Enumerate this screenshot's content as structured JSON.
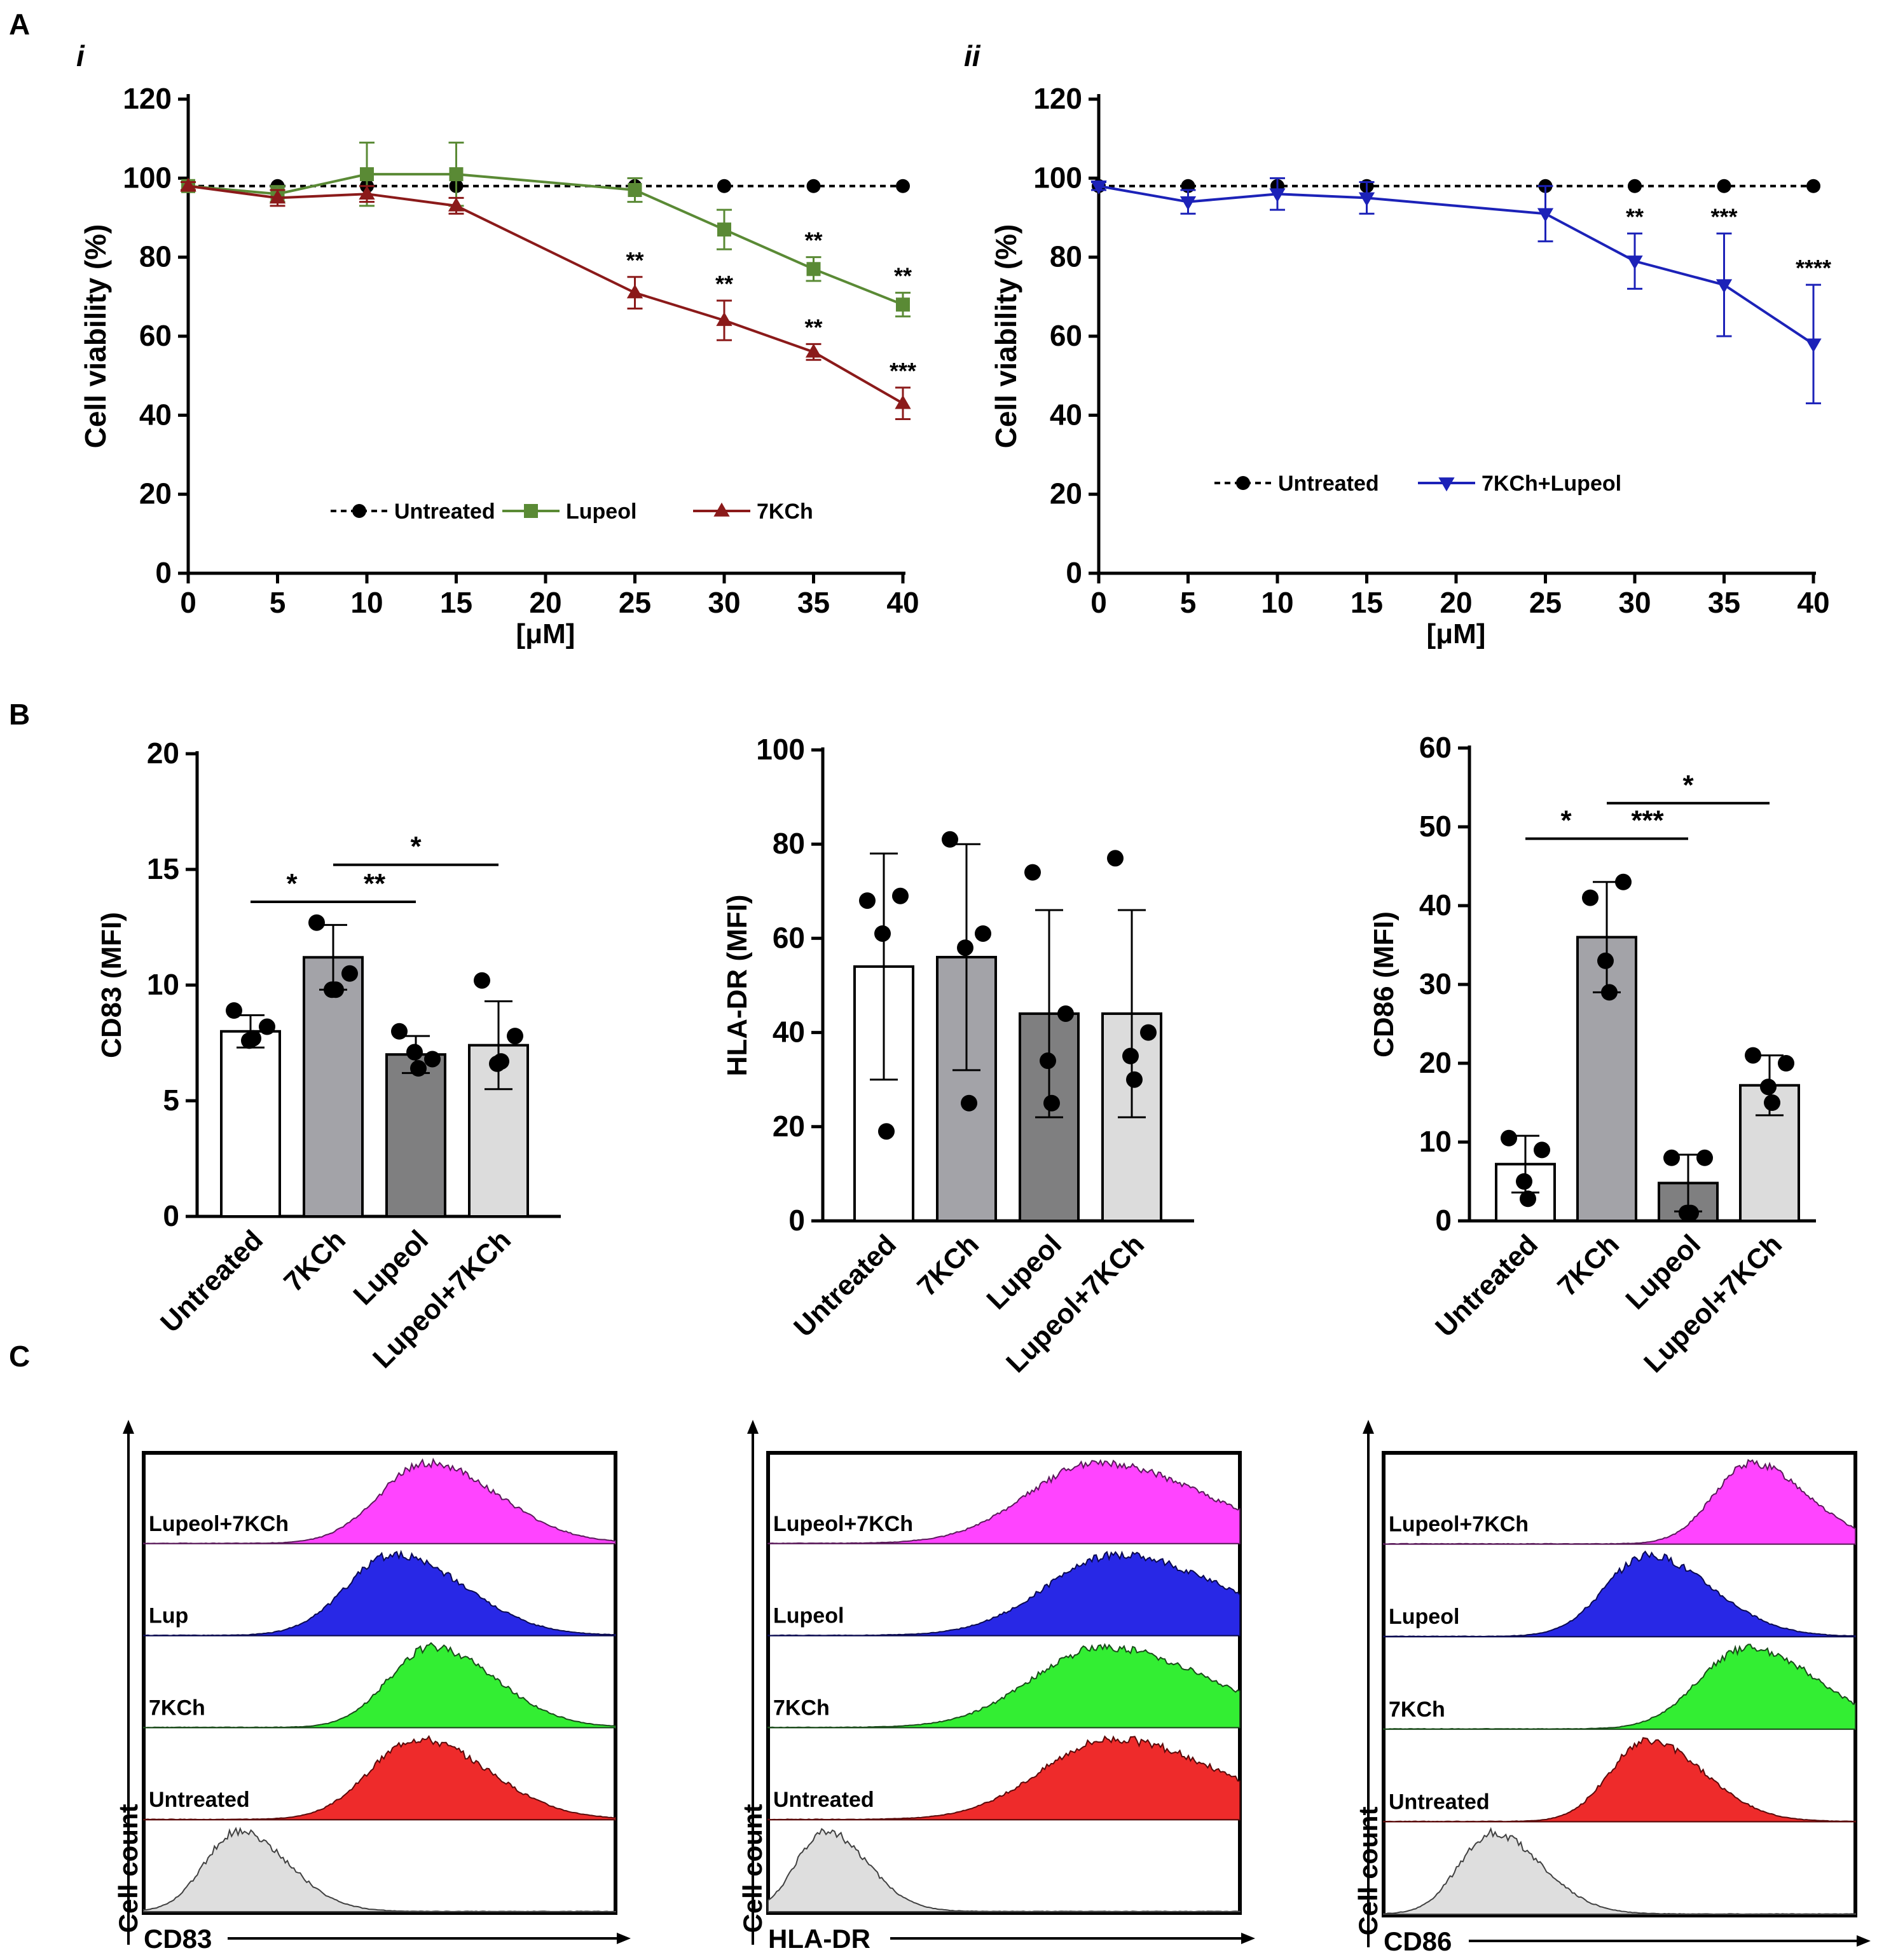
{
  "panel_labels": {
    "A": "A",
    "B": "B",
    "C": "C",
    "A_i": "i",
    "A_ii": "ii"
  },
  "colors": {
    "untreated": "#000000",
    "lupeol_line": "#5a8a35",
    "kch_line": "#8b1a1a",
    "combo_line": "#1c22b8",
    "bar_untreated": "#ffffff",
    "bar_7kch": "#a3a3a8",
    "bar_lupeol": "#7f7f80",
    "bar_combo": "#dcdcdc",
    "hist_combo": "#ff44ff",
    "hist_lupeol": "#2828e6",
    "hist_7kch": "#33ee33",
    "hist_untreated": "#ee2b2b",
    "hist_iso": "#dedede"
  },
  "chart_data": [
    {
      "id": "A_i",
      "type": "line",
      "xlabel": "[μM]",
      "ylabel": "Cell viability (%)",
      "xlim": [
        0,
        40
      ],
      "ylim": [
        0,
        120
      ],
      "xticks": [
        0,
        5,
        10,
        15,
        20,
        25,
        30,
        35,
        40
      ],
      "yticks": [
        0,
        20,
        40,
        60,
        80,
        100,
        120
      ],
      "legend": [
        "Untreated",
        "Lupeol",
        "7KCh"
      ],
      "series": [
        {
          "name": "Untreated",
          "marker": "circle",
          "dashed": true,
          "color": "#000000",
          "x": [
            0,
            5,
            10,
            15,
            25,
            30,
            35,
            40
          ],
          "y": [
            98,
            98,
            98,
            98,
            98,
            98,
            98,
            98
          ],
          "err": [
            0,
            0,
            0,
            0,
            0,
            0,
            0,
            0
          ]
        },
        {
          "name": "Lupeol",
          "marker": "square",
          "dashed": false,
          "color": "#5a8a35",
          "x": [
            0,
            5,
            10,
            15,
            25,
            30,
            35,
            40
          ],
          "y": [
            98,
            96,
            101,
            101,
            97,
            87,
            77,
            68
          ],
          "err": [
            1,
            2,
            8,
            8,
            3,
            5,
            3,
            3
          ]
        },
        {
          "name": "7KCh",
          "marker": "triangle-up",
          "dashed": false,
          "color": "#8b1a1a",
          "x": [
            0,
            5,
            10,
            15,
            25,
            30,
            35,
            40
          ],
          "y": [
            98,
            95,
            96,
            93,
            71,
            64,
            56,
            43
          ],
          "err": [
            1,
            2,
            2,
            2,
            4,
            5,
            2,
            4
          ]
        }
      ],
      "annotations": [
        {
          "x": 25,
          "y": 71,
          "text": "**"
        },
        {
          "x": 30,
          "y": 64,
          "text": "**"
        },
        {
          "x": 35,
          "y": 56,
          "text": "**"
        },
        {
          "x": 40,
          "y": 43,
          "text": "***"
        },
        {
          "x": 35,
          "y": 77,
          "text": "**"
        },
        {
          "x": 40,
          "y": 68,
          "text": "**"
        }
      ]
    },
    {
      "id": "A_ii",
      "type": "line",
      "xlabel": "[μM]",
      "ylabel": "Cell viability (%)",
      "xlim": [
        0,
        40
      ],
      "ylim": [
        0,
        120
      ],
      "xticks": [
        0,
        5,
        10,
        15,
        20,
        25,
        30,
        35,
        40
      ],
      "yticks": [
        0,
        20,
        40,
        60,
        80,
        100,
        120
      ],
      "legend": [
        "Untreated",
        "7KCh+Lupeol"
      ],
      "series": [
        {
          "name": "Untreated",
          "marker": "circle",
          "dashed": true,
          "color": "#000000",
          "x": [
            0,
            5,
            10,
            15,
            25,
            30,
            35,
            40
          ],
          "y": [
            98,
            98,
            98,
            98,
            98,
            98,
            98,
            98
          ],
          "err": [
            0,
            0,
            0,
            0,
            0,
            0,
            0,
            0
          ]
        },
        {
          "name": "7KCh+Lupeol",
          "marker": "triangle-down",
          "dashed": false,
          "color": "#1c22b8",
          "x": [
            0,
            5,
            10,
            15,
            25,
            30,
            35,
            40
          ],
          "y": [
            98,
            94,
            96,
            95,
            91,
            79,
            73,
            58
          ],
          "err": [
            1,
            3,
            4,
            4,
            7,
            7,
            13,
            15
          ]
        }
      ],
      "annotations": [
        {
          "x": 30,
          "y": 79,
          "text": "**"
        },
        {
          "x": 35,
          "y": 73,
          "text": "***"
        },
        {
          "x": 40,
          "y": 58,
          "text": "****"
        }
      ]
    },
    {
      "id": "B_CD83",
      "type": "bar",
      "ylabel": "CD83 (MFI)",
      "ylim": [
        0,
        20
      ],
      "yticks": [
        0,
        5,
        10,
        15,
        20
      ],
      "categories": [
        "Untreated",
        "7KCh",
        "Lupeol",
        "Lupeol+7KCh"
      ],
      "values": [
        8.0,
        11.2,
        7.0,
        7.4
      ],
      "err": [
        0.7,
        1.4,
        0.8,
        1.9
      ],
      "points": [
        [
          8.9,
          8.2,
          7.6,
          7.7
        ],
        [
          12.7,
          10.5,
          9.8,
          9.8
        ],
        [
          8.0,
          6.8,
          7.1,
          6.4
        ],
        [
          10.2,
          7.8,
          6.6,
          6.7
        ]
      ],
      "significance": [
        {
          "from": 0,
          "to": 1,
          "y": 13.6,
          "text": "*"
        },
        {
          "from": 1,
          "to": 2,
          "y": 13.6,
          "text": "**"
        },
        {
          "from": 1,
          "to": 3,
          "y": 15.2,
          "text": "*"
        }
      ]
    },
    {
      "id": "B_HLADR",
      "type": "bar",
      "ylabel": "HLA-DR (MFI)",
      "ylim": [
        0,
        100
      ],
      "yticks": [
        0,
        20,
        40,
        60,
        80,
        100
      ],
      "categories": [
        "Untreated",
        "7KCh",
        "Lupeol",
        "Lupeol+7KCh"
      ],
      "values": [
        54,
        56,
        44,
        44
      ],
      "err": [
        24,
        24,
        22,
        22
      ],
      "points": [
        [
          68,
          69,
          61,
          19
        ],
        [
          81,
          61,
          58,
          25
        ],
        [
          74,
          44,
          34,
          25
        ],
        [
          77,
          40,
          35,
          30
        ]
      ],
      "significance": []
    },
    {
      "id": "B_CD86",
      "type": "bar",
      "ylabel": "CD86 (MFI)",
      "ylim": [
        0,
        60
      ],
      "yticks": [
        0,
        10,
        20,
        30,
        40,
        50,
        60
      ],
      "categories": [
        "Untreated",
        "7KCh",
        "Lupeol",
        "Lupeol+7KCh"
      ],
      "values": [
        7.2,
        36.0,
        4.8,
        17.2
      ],
      "err": [
        3.6,
        7.0,
        3.6,
        3.8
      ],
      "points": [
        [
          10.5,
          9.0,
          5.0,
          2.8
        ],
        [
          41.0,
          43.0,
          33.0,
          29.0
        ],
        [
          8.0,
          8.0,
          1.0,
          1.0
        ],
        [
          21.0,
          20.0,
          17.0,
          15.0
        ]
      ],
      "significance": [
        {
          "from": 0,
          "to": 1,
          "y": 48.5,
          "text": "*"
        },
        {
          "from": 1,
          "to": 2,
          "y": 48.5,
          "text": "***"
        },
        {
          "from": 1,
          "to": 3,
          "y": 53.0,
          "text": "*"
        }
      ]
    },
    {
      "id": "C_CD83",
      "type": "area",
      "xlabel": "CD83",
      "ylabel": "Cell count",
      "rows": [
        {
          "label": "Lupeol+7KCh",
          "peak": 0.6,
          "width": 0.1
        },
        {
          "label": "Lup",
          "peak": 0.53,
          "width": 0.1
        },
        {
          "label": "7KCh",
          "peak": 0.61,
          "width": 0.09
        },
        {
          "label": "Untreated",
          "peak": 0.58,
          "width": 0.1
        },
        {
          "label": "",
          "peak": 0.2,
          "width": 0.07
        }
      ]
    },
    {
      "id": "C_HLADR",
      "type": "area",
      "xlabel": "HLA-DR",
      "ylabel": "Cell count",
      "rows": [
        {
          "label": "Lupeol+7KCh",
          "peak": 0.7,
          "width": 0.15
        },
        {
          "label": "Lupeol",
          "peak": 0.74,
          "width": 0.15
        },
        {
          "label": "7KCh",
          "peak": 0.71,
          "width": 0.15
        },
        {
          "label": "Untreated",
          "peak": 0.73,
          "width": 0.15
        },
        {
          "label": "",
          "peak": 0.12,
          "width": 0.06
        }
      ]
    },
    {
      "id": "C_CD86",
      "type": "area",
      "xlabel": "CD86",
      "ylabel": "Cell count",
      "rows": [
        {
          "label": "Lupeol+7KCh",
          "peak": 0.78,
          "width": 0.08
        },
        {
          "label": "Lupeol",
          "peak": 0.56,
          "width": 0.09
        },
        {
          "label": "7KCh",
          "peak": 0.77,
          "width": 0.1
        },
        {
          "label": "Untreated",
          "peak": 0.56,
          "width": 0.08
        },
        {
          "label": "",
          "peak": 0.23,
          "width": 0.07
        }
      ]
    }
  ]
}
